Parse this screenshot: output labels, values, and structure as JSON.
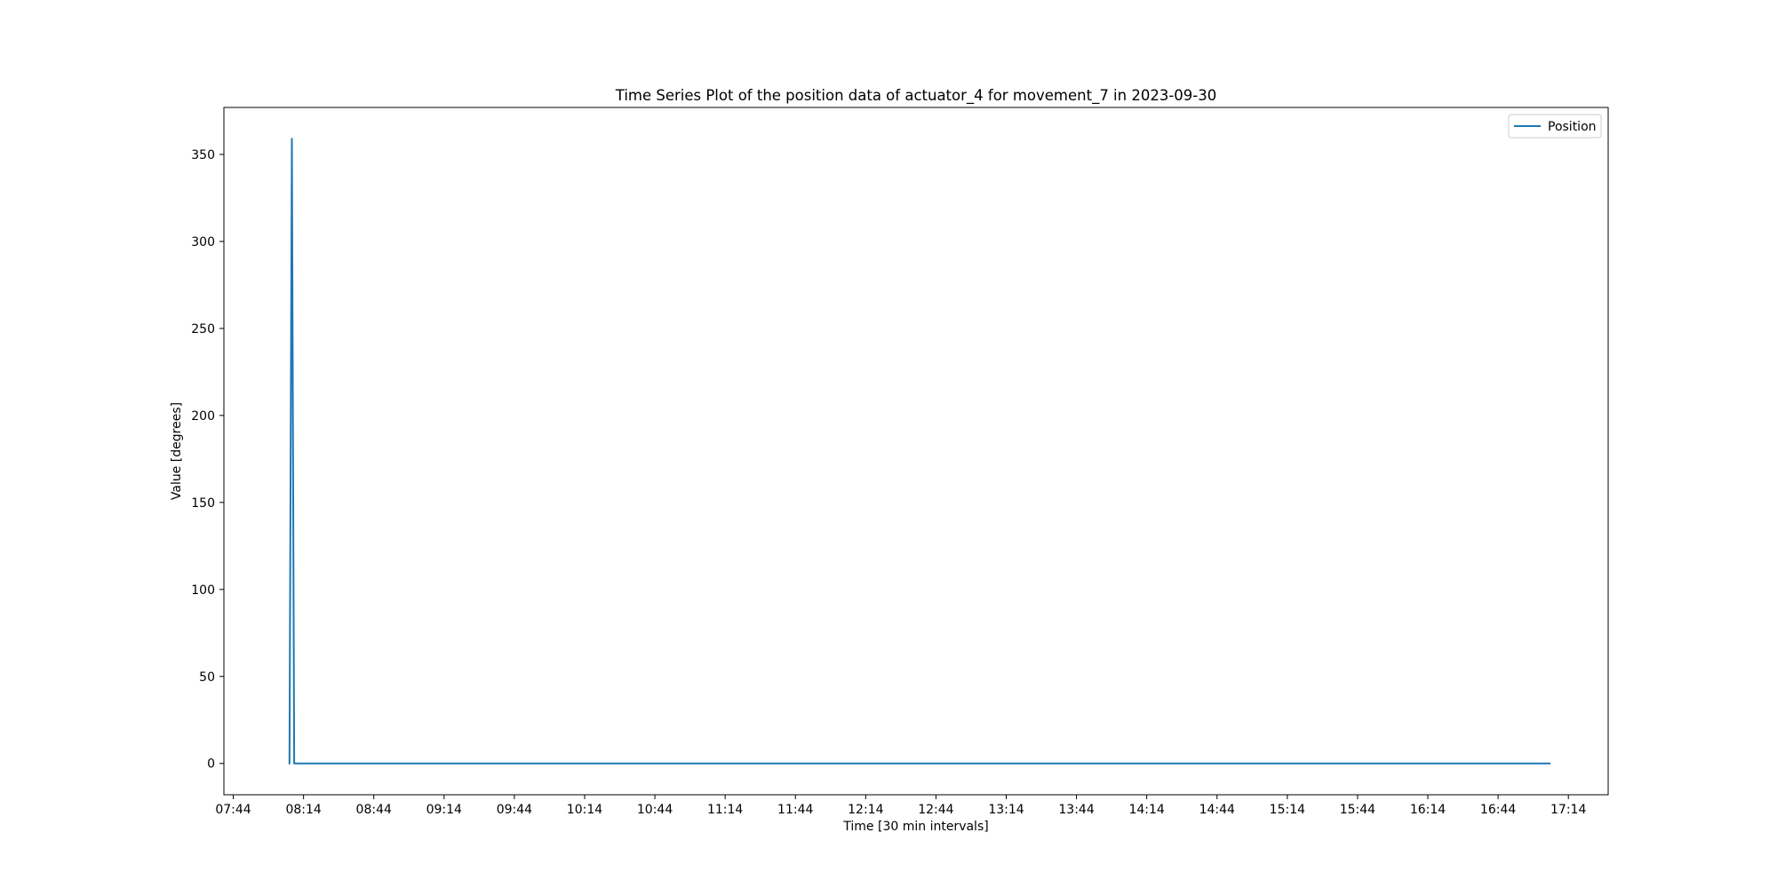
{
  "chart_data": {
    "type": "line",
    "title": "Time Series Plot of the position data of actuator_4 for movement_7 in 2023-09-30",
    "xlabel": "Time [30 min intervals]",
    "ylabel": "Value [degrees]",
    "x_ticks": [
      "07:44",
      "08:14",
      "08:44",
      "09:14",
      "09:44",
      "10:14",
      "10:44",
      "11:14",
      "11:44",
      "12:14",
      "12:44",
      "13:14",
      "13:44",
      "14:14",
      "14:44",
      "15:14",
      "15:44",
      "16:14",
      "16:44",
      "17:14"
    ],
    "y_ticks": [
      0,
      50,
      100,
      150,
      200,
      250,
      300,
      350
    ],
    "xlim": [
      "07:40",
      "17:31"
    ],
    "ylim": [
      -18,
      377
    ],
    "grid": false,
    "legend_position": "top-right",
    "series": [
      {
        "name": "Position",
        "color": "#1f77b4",
        "points": [
          [
            "08:08",
            0
          ],
          [
            "08:09",
            359
          ],
          [
            "08:10",
            0
          ],
          [
            "17:06",
            0
          ]
        ]
      }
    ]
  }
}
